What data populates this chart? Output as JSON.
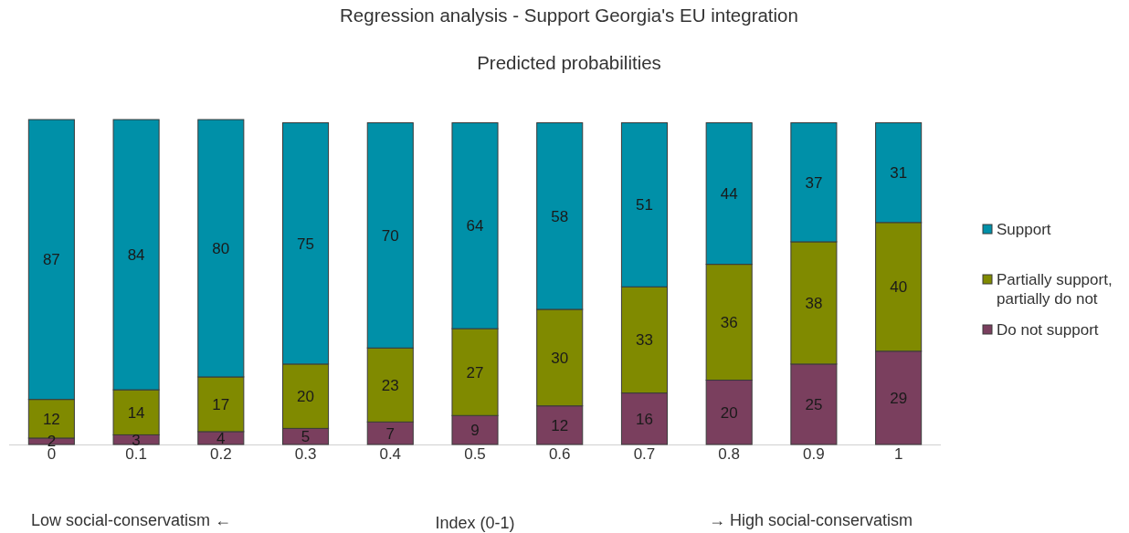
{
  "chart_data": {
    "type": "bar",
    "title": "Regression analysis - Support Georgia's EU integration",
    "subtitle": "Predicted probabilities",
    "xlabel": "Index (0-1)",
    "categories": [
      "0",
      "0.1",
      "0.2",
      "0.3",
      "0.4",
      "0.5",
      "0.6",
      "0.7",
      "0.8",
      "0.9",
      "1"
    ],
    "stacked": true,
    "data_labels": true,
    "legend": "right",
    "tick_labels": "x",
    "annotations": [
      "Low social-conservatism ←",
      "→ High social-conservatism"
    ],
    "series": [
      {
        "name": "Do not support",
        "color": "#7a3f5e",
        "values": [
          2,
          3,
          4,
          5,
          7,
          9,
          12,
          16,
          20,
          25,
          29
        ]
      },
      {
        "name": "Partially support, partially do not",
        "color": "#808a00",
        "values": [
          12,
          14,
          17,
          20,
          23,
          27,
          30,
          33,
          36,
          38,
          40
        ]
      },
      {
        "name": "Support",
        "color": "#0090a8",
        "values": [
          87,
          84,
          80,
          75,
          70,
          64,
          58,
          51,
          44,
          37,
          31
        ]
      }
    ]
  }
}
